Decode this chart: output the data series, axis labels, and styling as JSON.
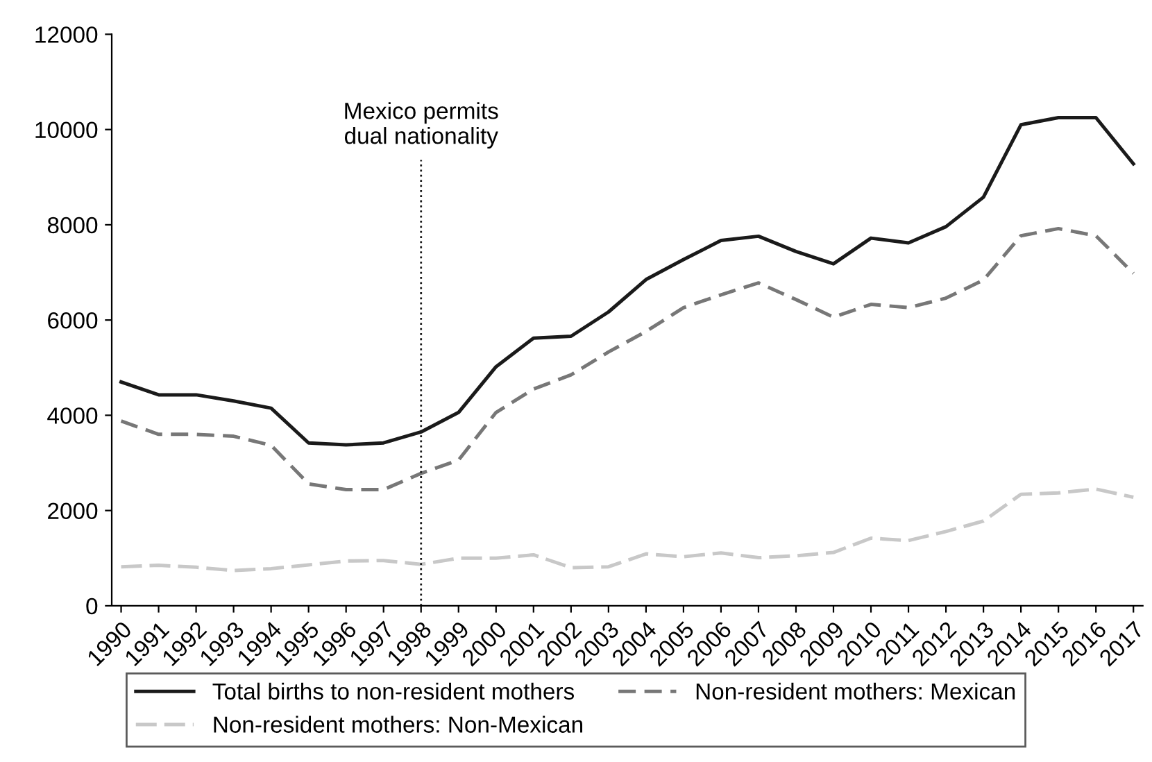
{
  "chart_data": {
    "type": "line",
    "x": [
      1990,
      1991,
      1992,
      1993,
      1994,
      1995,
      1996,
      1997,
      1998,
      1999,
      2000,
      2001,
      2002,
      2003,
      2004,
      2005,
      2006,
      2007,
      2008,
      2009,
      2010,
      2011,
      2012,
      2013,
      2014,
      2015,
      2016,
      2017
    ],
    "series": [
      {
        "name": "Total births to non-resident mothers",
        "color": "#1a1a1a",
        "line_style": "solid",
        "values": [
          4700,
          4430,
          4430,
          4300,
          4150,
          3420,
          3380,
          3420,
          3650,
          4060,
          5020,
          5620,
          5660,
          6170,
          6850,
          7270,
          7670,
          7760,
          7440,
          7180,
          7720,
          7620,
          7960,
          8580,
          10100,
          10250,
          10250,
          9280
        ]
      },
      {
        "name": "Non-resident mothers: Mexican",
        "color": "#777777",
        "line_style": "dashed",
        "values": [
          3880,
          3600,
          3600,
          3560,
          3370,
          2560,
          2440,
          2440,
          2780,
          3060,
          4060,
          4550,
          4850,
          5330,
          5760,
          6260,
          6530,
          6780,
          6430,
          6060,
          6330,
          6260,
          6460,
          6840,
          7770,
          7920,
          7770,
          6980
        ]
      },
      {
        "name": "Non-resident mothers: Non-Mexican",
        "color": "#c8c8c8",
        "line_style": "dashed",
        "values": [
          820,
          850,
          810,
          740,
          780,
          860,
          940,
          950,
          870,
          1000,
          1000,
          1070,
          800,
          820,
          1090,
          1030,
          1110,
          1010,
          1050,
          1120,
          1420,
          1370,
          1560,
          1780,
          2340,
          2370,
          2450,
          2280
        ]
      }
    ],
    "xlim": [
      1989.75,
      2017.25
    ],
    "xticks": [
      1990,
      1991,
      1992,
      1993,
      1994,
      1995,
      1996,
      1997,
      1998,
      1999,
      2000,
      2001,
      2002,
      2003,
      2004,
      2005,
      2006,
      2007,
      2008,
      2009,
      2010,
      2011,
      2012,
      2013,
      2014,
      2015,
      2016,
      2017
    ],
    "ylim": [
      0,
      12000
    ],
    "yticks": [
      0,
      2000,
      4000,
      6000,
      8000,
      10000,
      12000
    ],
    "ref_lines": [
      {
        "axis": "x",
        "value": 1998,
        "label": "Mexico permits\ndual nationality",
        "color": "#1a1a1a",
        "line_style": "dotted"
      }
    ],
    "grid": false,
    "legend": "bottom",
    "marker": "none"
  }
}
